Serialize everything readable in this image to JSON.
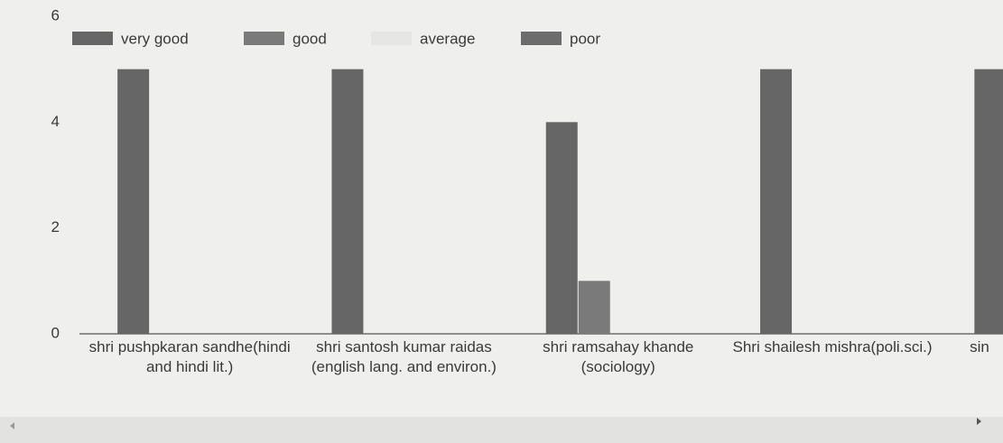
{
  "chart_data": {
    "type": "bar",
    "categories": [
      "shri pushpkaran sandhe(hindi and hindi lit.)",
      "shri santosh kumar raidas (english lang. and environ.)",
      "shri ramsahay khande (sociology)",
      "Shri shailesh mishra(poli.sci.)",
      "sin"
    ],
    "series": [
      {
        "name": "very good",
        "color": "#666666",
        "values": [
          5,
          5,
          4,
          5,
          5
        ]
      },
      {
        "name": "good",
        "color": "#7a7a7a",
        "values": [
          0,
          0,
          1,
          0,
          0
        ]
      },
      {
        "name": "average",
        "color": "#e6e6e4",
        "values": [
          0,
          0,
          0,
          0,
          0
        ]
      },
      {
        "name": "poor",
        "color": "#6c6c6c",
        "values": [
          0,
          0,
          0,
          0,
          0
        ]
      }
    ],
    "ylim": [
      0,
      6
    ],
    "yticks": [
      0,
      2,
      4,
      6
    ],
    "grid": false
  }
}
